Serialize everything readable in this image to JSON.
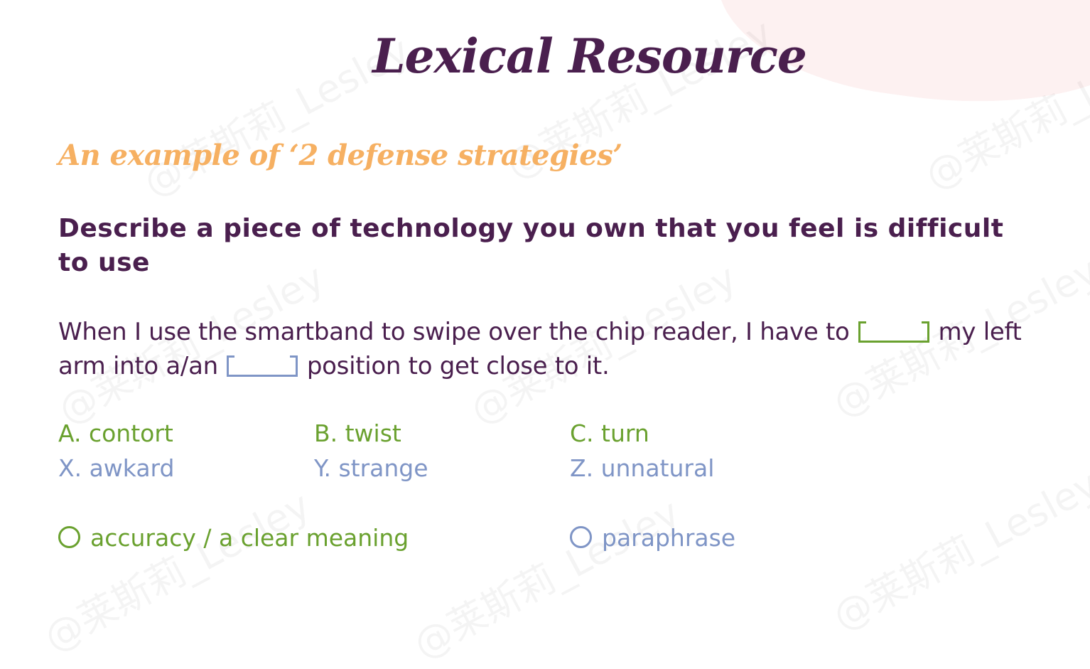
{
  "title": "Lexical Resource",
  "subtitle": "An example of  ‘2 defense strategies’",
  "prompt": "Describe a piece of technology you own that you feel is difficult to use",
  "sentence": {
    "part1": "When I use the smartband to swipe over the chip reader, I have to",
    "part2": "my left arm into a/an",
    "part3": "position to get close to it."
  },
  "options_row1": [
    {
      "label": "A. contort"
    },
    {
      "label": "B. twist"
    },
    {
      "label": "C. turn"
    }
  ],
  "options_row2": [
    {
      "label": "X. awkard"
    },
    {
      "label": "Y. strange"
    },
    {
      "label": "Z. unnatural"
    }
  ],
  "strategies": [
    {
      "label": "accuracy / a clear meaning"
    },
    {
      "label": "paraphrase"
    }
  ],
  "watermark": "@莱斯莉_Lesley",
  "colors": {
    "title": "#4a1f4e",
    "subtitle": "#f6b062",
    "green": "#6aa12f",
    "blue": "#7f95c6"
  }
}
